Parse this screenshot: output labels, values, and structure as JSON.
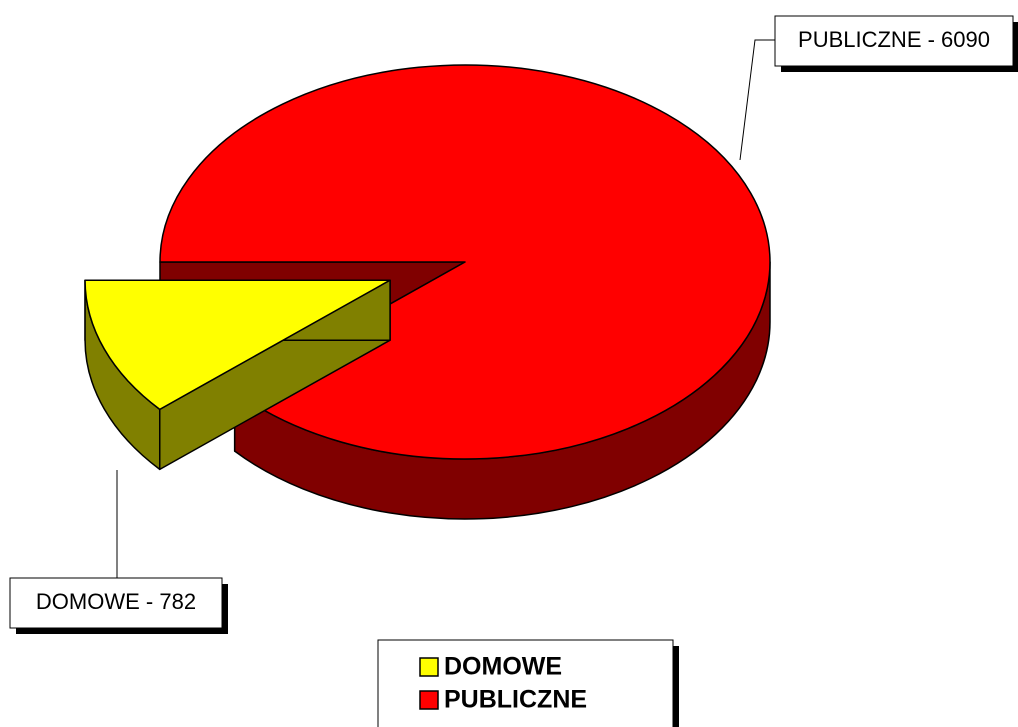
{
  "chart_data": {
    "type": "pie3d",
    "categories": [
      "DOMOWE",
      "PUBLICZNE"
    ],
    "values": [
      782,
      6090
    ],
    "value_labels": [
      "DOMOWE - 782",
      "PUBLICZNE - 6090"
    ],
    "colors": [
      "#ffff00",
      "#ff0000"
    ],
    "side_colors": [
      "#808000",
      "#800000"
    ],
    "legend": "bottom"
  }
}
